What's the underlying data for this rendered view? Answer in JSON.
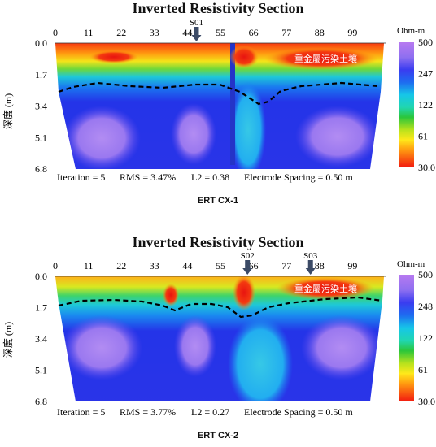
{
  "chart_data": [
    {
      "type": "heatmap",
      "title": "Inverted Resistivity Section",
      "caption": "ERT CX-1",
      "xticks": [
        "0",
        "11",
        "22",
        "33",
        "44",
        "55",
        "66",
        "77",
        "88",
        "99"
      ],
      "x_range": [
        0,
        110
      ],
      "ylabel": "深度 (m)",
      "yticks": [
        "0.0",
        "1.7",
        "3.4",
        "5.1",
        "6.8"
      ],
      "y_range": [
        0.0,
        6.8
      ],
      "colorbar_unit": "Ohm-m",
      "colorbar_ticks": [
        "500",
        "247",
        "122",
        "61",
        "30.0"
      ],
      "markers": [
        {
          "label": "S01",
          "x": 47
        }
      ],
      "annotation": "重金屬污染土壤",
      "stats": {
        "iteration": "Iteration = 5",
        "rms": "RMS = 3.47%",
        "l2": "L2 = 0.38",
        "spacing": "Electrode Spacing = 0.50 m"
      }
    },
    {
      "type": "heatmap",
      "title": "Inverted Resistivity Section",
      "caption": "ERT CX-2",
      "xticks": [
        "0",
        "11",
        "22",
        "33",
        "44",
        "55",
        "66",
        "77",
        "88",
        "99"
      ],
      "x_range": [
        0,
        110
      ],
      "ylabel": "深度 (m)",
      "yticks": [
        "0.0",
        "1.7",
        "3.4",
        "5.1",
        "6.8"
      ],
      "y_range": [
        0.0,
        6.8
      ],
      "colorbar_unit": "Ohm-m",
      "colorbar_ticks": [
        "500",
        "248",
        "122",
        "61",
        "30.0"
      ],
      "markers": [
        {
          "label": "S02",
          "x": 64
        },
        {
          "label": "S03",
          "x": 85
        }
      ],
      "annotation": "重金屬污染土壤",
      "stats": {
        "iteration": "Iteration = 5",
        "rms": "RMS = 3.77%",
        "l2": "L2 = 0.27",
        "spacing": "Electrode Spacing = 0.50 m"
      }
    }
  ]
}
